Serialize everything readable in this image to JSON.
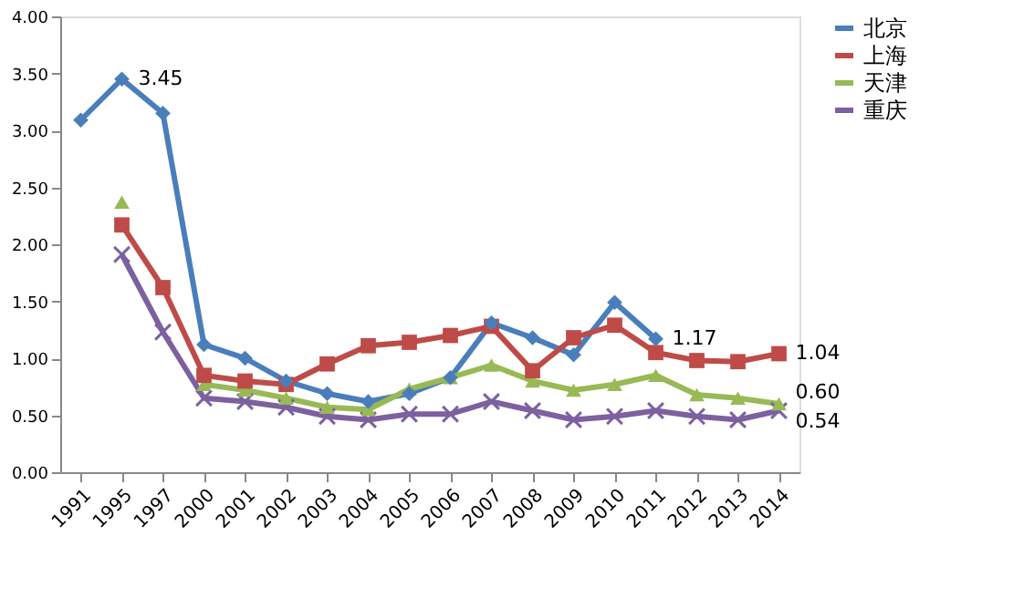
{
  "chart_data": {
    "type": "line",
    "categories": [
      "1991",
      "1995",
      "1997",
      "2000",
      "2001",
      "2002",
      "2003",
      "2004",
      "2005",
      "2006",
      "2007",
      "2008",
      "2009",
      "2010",
      "2011",
      "2012",
      "2013",
      "2014"
    ],
    "series": [
      {
        "name": "北京",
        "color": "#4a7ebb",
        "marker": "diamond",
        "values": [
          3.09,
          3.45,
          3.15,
          1.12,
          1.0,
          0.8,
          0.69,
          0.62,
          0.69,
          0.83,
          1.31,
          1.18,
          1.03,
          1.49,
          1.17,
          null,
          null,
          null
        ]
      },
      {
        "name": "上海",
        "color": "#be4b48",
        "marker": "square",
        "values": [
          null,
          2.17,
          1.62,
          0.85,
          0.8,
          0.77,
          0.95,
          1.11,
          1.14,
          1.2,
          1.28,
          0.89,
          1.18,
          1.29,
          1.05,
          0.98,
          0.97,
          1.04
        ]
      },
      {
        "name": "天津",
        "color": "#98b954",
        "marker": "triangle",
        "values": [
          null,
          2.37,
          null,
          0.77,
          0.72,
          0.65,
          0.57,
          0.55,
          0.73,
          0.83,
          0.94,
          0.8,
          0.72,
          0.77,
          0.85,
          0.68,
          0.65,
          0.6
        ]
      },
      {
        "name": "重庆",
        "color": "#7d60a0",
        "marker": "cross",
        "values": [
          null,
          1.91,
          1.23,
          0.65,
          0.62,
          0.57,
          0.49,
          0.46,
          0.51,
          0.51,
          0.62,
          0.54,
          0.46,
          0.49,
          0.54,
          0.49,
          0.46,
          0.54
        ]
      }
    ],
    "annotations": [
      {
        "text": "3.45",
        "x": "1995",
        "y": 3.45
      },
      {
        "text": "1.17",
        "x": "2011",
        "y": 1.17
      },
      {
        "text": "1.04",
        "x": "2014",
        "y": 1.04
      },
      {
        "text": "0.60",
        "x": "2014",
        "y": 0.6
      },
      {
        "text": "0.54",
        "x": "2014",
        "y": 0.54
      }
    ],
    "ylim": [
      0,
      4
    ],
    "yticks": [
      {
        "value": 0,
        "label": "0.00"
      },
      {
        "value": 0.5,
        "label": "0.50"
      },
      {
        "value": 1,
        "label": "1.00"
      },
      {
        "value": 1.5,
        "label": "1.50"
      },
      {
        "value": 2,
        "label": "2.00"
      },
      {
        "value": 2.5,
        "label": "2.50"
      },
      {
        "value": 3,
        "label": "3.00"
      },
      {
        "value": 3.5,
        "label": "3.50"
      },
      {
        "value": 4,
        "label": "4.00"
      }
    ],
    "legend": "right",
    "grid": false
  }
}
